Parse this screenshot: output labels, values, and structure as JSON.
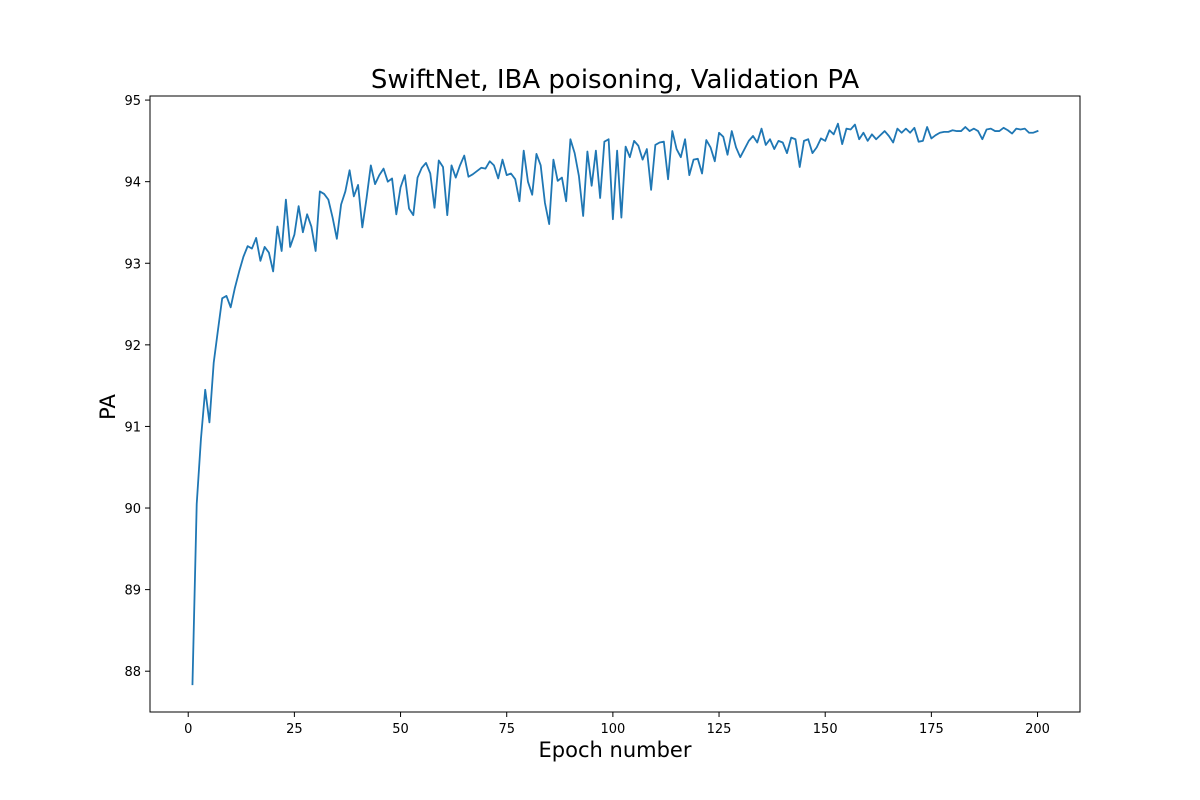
{
  "chart_data": {
    "type": "line",
    "title": "SwiftNet, IBA poisoning, Validation PA",
    "xlabel": "Epoch number",
    "ylabel": "PA",
    "xlim": [
      -9,
      210
    ],
    "ylim": [
      87.5,
      95.05
    ],
    "x_ticks": [
      0,
      25,
      50,
      75,
      100,
      125,
      150,
      175,
      200
    ],
    "y_ticks": [
      88,
      89,
      90,
      91,
      92,
      93,
      94,
      95
    ],
    "grid": false,
    "legend": "none",
    "series": [
      {
        "color": "#1f77b4",
        "x": [
          1,
          2,
          3,
          4,
          5,
          6,
          7,
          8,
          9,
          10,
          11,
          12,
          13,
          14,
          15,
          16,
          17,
          18,
          19,
          20,
          21,
          22,
          23,
          24,
          25,
          26,
          27,
          28,
          29,
          30,
          31,
          32,
          33,
          34,
          35,
          36,
          37,
          38,
          39,
          40,
          41,
          42,
          43,
          44,
          45,
          46,
          47,
          48,
          49,
          50,
          51,
          52,
          53,
          54,
          55,
          56,
          57,
          58,
          59,
          60,
          61,
          62,
          63,
          64,
          65,
          66,
          67,
          68,
          69,
          70,
          71,
          72,
          73,
          74,
          75,
          76,
          77,
          78,
          79,
          80,
          81,
          82,
          83,
          84,
          85,
          86,
          87,
          88,
          89,
          90,
          91,
          92,
          93,
          94,
          95,
          96,
          97,
          98,
          99,
          100,
          101,
          102,
          103,
          104,
          105,
          106,
          107,
          108,
          109,
          110,
          111,
          112,
          113,
          114,
          115,
          116,
          117,
          118,
          119,
          120,
          121,
          122,
          123,
          124,
          125,
          126,
          127,
          128,
          129,
          130,
          131,
          132,
          133,
          134,
          135,
          136,
          137,
          138,
          139,
          140,
          141,
          142,
          143,
          144,
          145,
          146,
          147,
          148,
          149,
          150,
          151,
          152,
          153,
          154,
          155,
          156,
          157,
          158,
          159,
          160,
          161,
          162,
          163,
          164,
          165,
          166,
          167,
          168,
          169,
          170,
          171,
          172,
          173,
          174,
          175,
          176,
          177,
          178,
          179,
          180,
          181,
          182,
          183,
          184,
          185,
          186,
          187,
          188,
          189,
          190,
          191,
          192,
          193,
          194,
          195,
          196,
          197,
          198,
          199,
          200
        ],
        "values": [
          87.84,
          90.05,
          90.85,
          91.45,
          91.05,
          91.78,
          92.18,
          92.57,
          92.6,
          92.46,
          92.7,
          92.9,
          93.08,
          93.21,
          93.18,
          93.31,
          93.03,
          93.2,
          93.13,
          92.9,
          93.45,
          93.15,
          93.78,
          93.2,
          93.35,
          93.7,
          93.38,
          93.6,
          93.45,
          93.15,
          93.88,
          93.85,
          93.78,
          93.56,
          93.3,
          93.72,
          93.88,
          94.14,
          93.82,
          93.96,
          93.44,
          93.8,
          94.2,
          93.97,
          94.08,
          94.16,
          94.0,
          94.04,
          93.6,
          93.93,
          94.08,
          93.67,
          93.59,
          94.05,
          94.17,
          94.23,
          94.1,
          93.68,
          94.26,
          94.18,
          93.59,
          94.2,
          94.05,
          94.2,
          94.32,
          94.06,
          94.09,
          94.13,
          94.17,
          94.16,
          94.25,
          94.2,
          94.04,
          94.27,
          94.08,
          94.1,
          94.03,
          93.76,
          94.38,
          94.0,
          93.84,
          94.34,
          94.2,
          93.74,
          93.48,
          94.27,
          94.01,
          94.05,
          93.76,
          94.52,
          94.35,
          94.07,
          93.58,
          94.37,
          93.95,
          94.38,
          93.8,
          94.49,
          94.52,
          93.54,
          94.38,
          93.56,
          94.43,
          94.3,
          94.5,
          94.44,
          94.27,
          94.4,
          93.9,
          94.45,
          94.48,
          94.49,
          94.03,
          94.62,
          94.4,
          94.3,
          94.52,
          94.08,
          94.27,
          94.28,
          94.1,
          94.51,
          94.42,
          94.25,
          94.6,
          94.55,
          94.33,
          94.62,
          94.42,
          94.3,
          94.4,
          94.5,
          94.56,
          94.48,
          94.65,
          94.45,
          94.52,
          94.4,
          94.5,
          94.48,
          94.35,
          94.54,
          94.52,
          94.18,
          94.5,
          94.52,
          94.35,
          94.42,
          94.53,
          94.5,
          94.63,
          94.58,
          94.71,
          94.46,
          94.65,
          94.64,
          94.7,
          94.52,
          94.6,
          94.5,
          94.58,
          94.52,
          94.57,
          94.62,
          94.56,
          94.48,
          94.65,
          94.6,
          94.65,
          94.6,
          94.66,
          94.49,
          94.5,
          94.67,
          94.53,
          94.57,
          94.6,
          94.61,
          94.61,
          94.63,
          94.62,
          94.62,
          94.67,
          94.62,
          94.65,
          94.62,
          94.52,
          94.64,
          94.65,
          94.62,
          94.62,
          94.66,
          94.63,
          94.59,
          94.65,
          94.64,
          94.65,
          94.6,
          94.6,
          94.62
        ]
      }
    ]
  }
}
